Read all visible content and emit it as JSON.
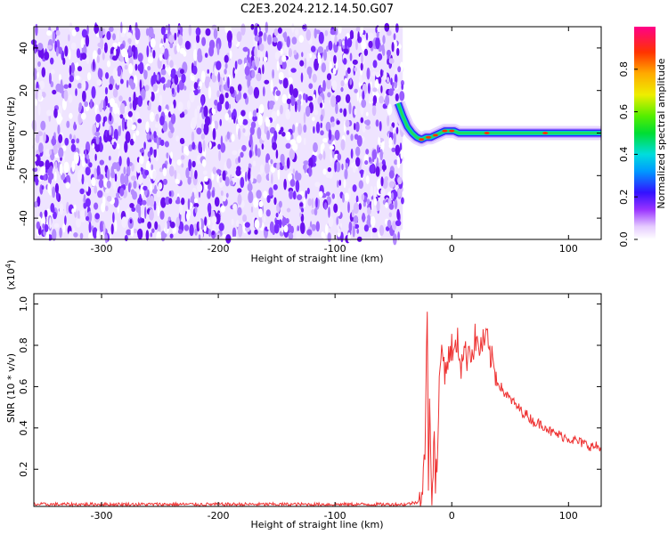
{
  "title": "C2E3.2024.212.14.50.G07",
  "chart_data": [
    {
      "type": "heatmap",
      "xlabel": "Height of straight line (km)",
      "ylabel": "Frequency (Hz)",
      "xlim": [
        -358,
        128
      ],
      "ylim": [
        -50,
        50
      ],
      "xticks": [
        -300,
        -200,
        -100,
        0,
        100
      ],
      "yticks": [
        -40,
        -20,
        0,
        20,
        40
      ],
      "noise_region_x": [
        -358,
        -42
      ],
      "signal_trace": {
        "x": [
          -46,
          -42,
          -38,
          -34,
          -30,
          -26,
          -22,
          -18,
          -14,
          -10,
          -6,
          -2,
          2,
          6,
          10,
          20,
          40,
          60,
          80,
          100,
          128
        ],
        "y": [
          14,
          8,
          3,
          0,
          -2,
          -3,
          -2,
          -2,
          -1,
          0,
          1,
          1,
          1,
          0,
          0,
          0,
          0,
          0,
          0,
          0,
          0
        ]
      },
      "colorbar": {
        "label": "Normalized spectral amplitude",
        "ticks": [
          0.0,
          0.2,
          0.4,
          0.6,
          0.8
        ],
        "range": [
          0,
          1
        ]
      }
    },
    {
      "type": "line",
      "xlabel": "Height of straight line (km)",
      "ylabel": "SNR (10 * v/v)",
      "yscale_note": "(x10",
      "yscale_exp": "4",
      "yscale_close": ")",
      "xlim": [
        -358,
        128
      ],
      "ylim": [
        0.02,
        1.05
      ],
      "xticks": [
        -300,
        -200,
        -100,
        0,
        100
      ],
      "yticks": [
        0.2,
        0.4,
        0.6,
        0.8,
        1.0
      ],
      "line_color": "#ee3333",
      "series": [
        {
          "x": [
            -358,
            -300,
            -250,
            -200,
            -150,
            -100,
            -60,
            -40,
            -30,
            -25,
            -23,
            -21,
            -20,
            -19,
            -18,
            -17,
            -16,
            -15,
            -14,
            -12,
            -10,
            -8,
            -6,
            -4,
            -2,
            0,
            2,
            5,
            8,
            10,
            13,
            15,
            18,
            20,
            23,
            25,
            28,
            30,
            32,
            35,
            38,
            40,
            45,
            50,
            55,
            60,
            65,
            70,
            75,
            80,
            85,
            90,
            95,
            100,
            105,
            110,
            115,
            120,
            125,
            128
          ],
          "y": [
            0.03,
            0.03,
            0.03,
            0.03,
            0.03,
            0.03,
            0.03,
            0.03,
            0.04,
            0.08,
            0.3,
            0.95,
            0.1,
            0.6,
            0.3,
            0.02,
            0.2,
            0.4,
            0.15,
            0.3,
            0.72,
            0.78,
            0.68,
            0.72,
            0.75,
            0.8,
            0.75,
            0.82,
            0.7,
            0.78,
            0.74,
            0.8,
            0.75,
            0.84,
            0.78,
            0.8,
            0.82,
            0.84,
            0.76,
            0.72,
            0.65,
            0.62,
            0.57,
            0.54,
            0.51,
            0.48,
            0.46,
            0.43,
            0.42,
            0.41,
            0.38,
            0.37,
            0.36,
            0.35,
            0.34,
            0.33,
            0.32,
            0.31,
            0.31,
            0.29
          ]
        }
      ]
    }
  ]
}
